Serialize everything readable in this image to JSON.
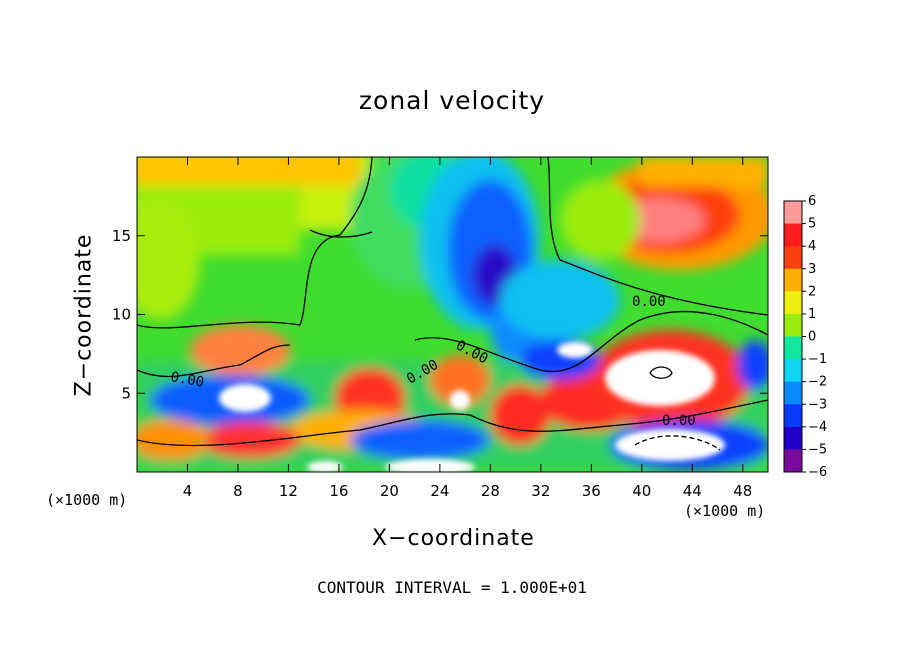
{
  "chart_data": {
    "type": "heatmap",
    "title": "zonal velocity",
    "xlabel": "X−coordinate",
    "ylabel": "Z−coordinate",
    "x_unit_left": "(×1000 m)",
    "x_unit_right": "(×1000 m)",
    "note": "CONTOUR INTERVAL = 1.000E+01",
    "xlim": [
      0,
      50
    ],
    "ylim": [
      0,
      20
    ],
    "x_ticks": [
      4,
      8,
      12,
      16,
      20,
      24,
      28,
      32,
      36,
      40,
      44,
      48
    ],
    "x_tick_labels": [
      "4",
      "8",
      "12",
      "16",
      "20",
      "24",
      "28",
      "32",
      "36",
      "40",
      "44",
      "48"
    ],
    "y_ticks": [
      5,
      10,
      15
    ],
    "y_tick_labels": [
      "5",
      "10",
      "15"
    ],
    "colorbar": {
      "range": [
        -6,
        6
      ],
      "labels": [
        "6",
        "5",
        "4",
        "3",
        "2",
        "1",
        "0",
        "−1",
        "−2",
        "−3",
        "−4",
        "−5",
        "−6"
      ],
      "colors": {
        "-6": "#7a0a9a",
        "-5": "#1f00c8",
        "-4": "#0a3cff",
        "-3": "#0a8cff",
        "-2": "#10d4f0",
        "-1": "#10e7a0",
        "0": "#30dc30",
        "1": "#9aec10",
        "2": "#f0f010",
        "3": "#ffb000",
        "4": "#ff4010",
        "5": "#ff1e1e",
        "6": "#ff9a9a"
      }
    },
    "contour_labels": [
      "0.00",
      "0.00",
      "0.00",
      "0.00",
      "0.00"
    ],
    "field_features": [
      {
        "desc": "upper-right positive jet",
        "x": 42,
        "z": 16,
        "value": 5
      },
      {
        "desc": "central upper negative core",
        "x": 28,
        "z": 12.5,
        "value": -5
      },
      {
        "desc": "lower-right strong positive",
        "x": 42,
        "z": 5.5,
        "value": 7
      },
      {
        "desc": "lower-left negative band",
        "x": 5,
        "z": 4,
        "value": -4
      },
      {
        "desc": "upper-left weak positive",
        "x": 8,
        "z": 17,
        "value": 2
      }
    ]
  }
}
